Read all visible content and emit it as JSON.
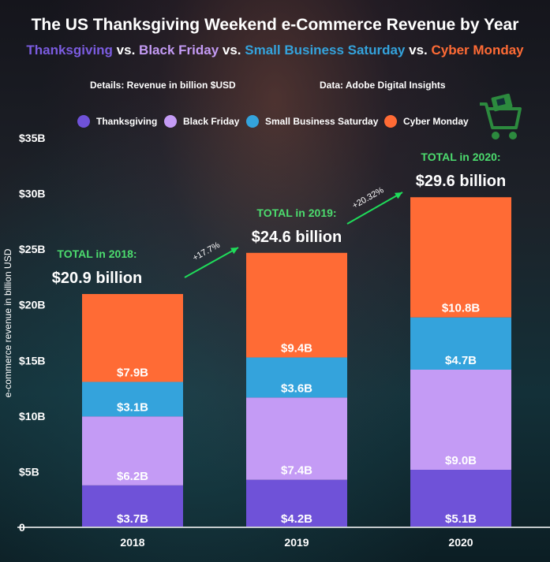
{
  "title": "The US Thanksgiving Weekend e-Commerce Revenue by Year",
  "subtitle": [
    {
      "text": "Thanksgiving",
      "color": "#7b5ce0"
    },
    {
      "text": " vs. ",
      "color": "#ffffff"
    },
    {
      "text": "Black Friday",
      "color": "#c49bf5"
    },
    {
      "text": " vs. ",
      "color": "#ffffff"
    },
    {
      "text": "Small Business Saturday",
      "color": "#34a3dc"
    },
    {
      "text": " vs. ",
      "color": "#ffffff"
    },
    {
      "text": "Cyber Monday",
      "color": "#ff6b35"
    }
  ],
  "details": "Details: Revenue in billion $USD",
  "source": "Data: Adobe Digital Insights",
  "icons": {
    "cart": "shopping-cart-icon"
  },
  "chart_data": {
    "type": "bar",
    "stacked": true,
    "categories": [
      "2018",
      "2019",
      "2020"
    ],
    "series": [
      {
        "name": "Thanksgiving",
        "color": "#6f52d8",
        "values": [
          3.7,
          4.2,
          5.1
        ],
        "labels": [
          "$3.7B",
          "$4.2B",
          "$5.1B"
        ]
      },
      {
        "name": "Black Friday",
        "color": "#c49bf5",
        "values": [
          6.2,
          7.4,
          9.0
        ],
        "labels": [
          "$6.2B",
          "$7.4B",
          "$9.0B"
        ]
      },
      {
        "name": "Small Business Saturday",
        "color": "#34a3dc",
        "values": [
          3.1,
          3.6,
          4.7
        ],
        "labels": [
          "$3.1B",
          "$3.6B",
          "$4.7B"
        ]
      },
      {
        "name": "Cyber Monday",
        "color": "#ff6b35",
        "values": [
          7.9,
          9.4,
          10.8
        ],
        "labels": [
          "$7.9B",
          "$9.4B",
          "$10.8B"
        ]
      }
    ],
    "totals": [
      {
        "label": "TOTAL in 2018:",
        "value": "$20.9 billion"
      },
      {
        "label": "TOTAL in 2019:",
        "value": "$24.6 billion"
      },
      {
        "label": "TOTAL in 2020:",
        "value": "$29.6 billion"
      }
    ],
    "growth": [
      "+17.7%",
      "+20.32%"
    ],
    "ylabel": "e-commerce revenue in billion USD",
    "ylim": [
      0,
      35
    ],
    "yticks": [
      0,
      5,
      10,
      15,
      20,
      25,
      30,
      35
    ],
    "ytick_labels": [
      "0",
      "$5B",
      "$10B",
      "$15B",
      "$20B",
      "$25B",
      "$30B",
      "$35B"
    ],
    "legend_position": "top",
    "grid": false
  }
}
